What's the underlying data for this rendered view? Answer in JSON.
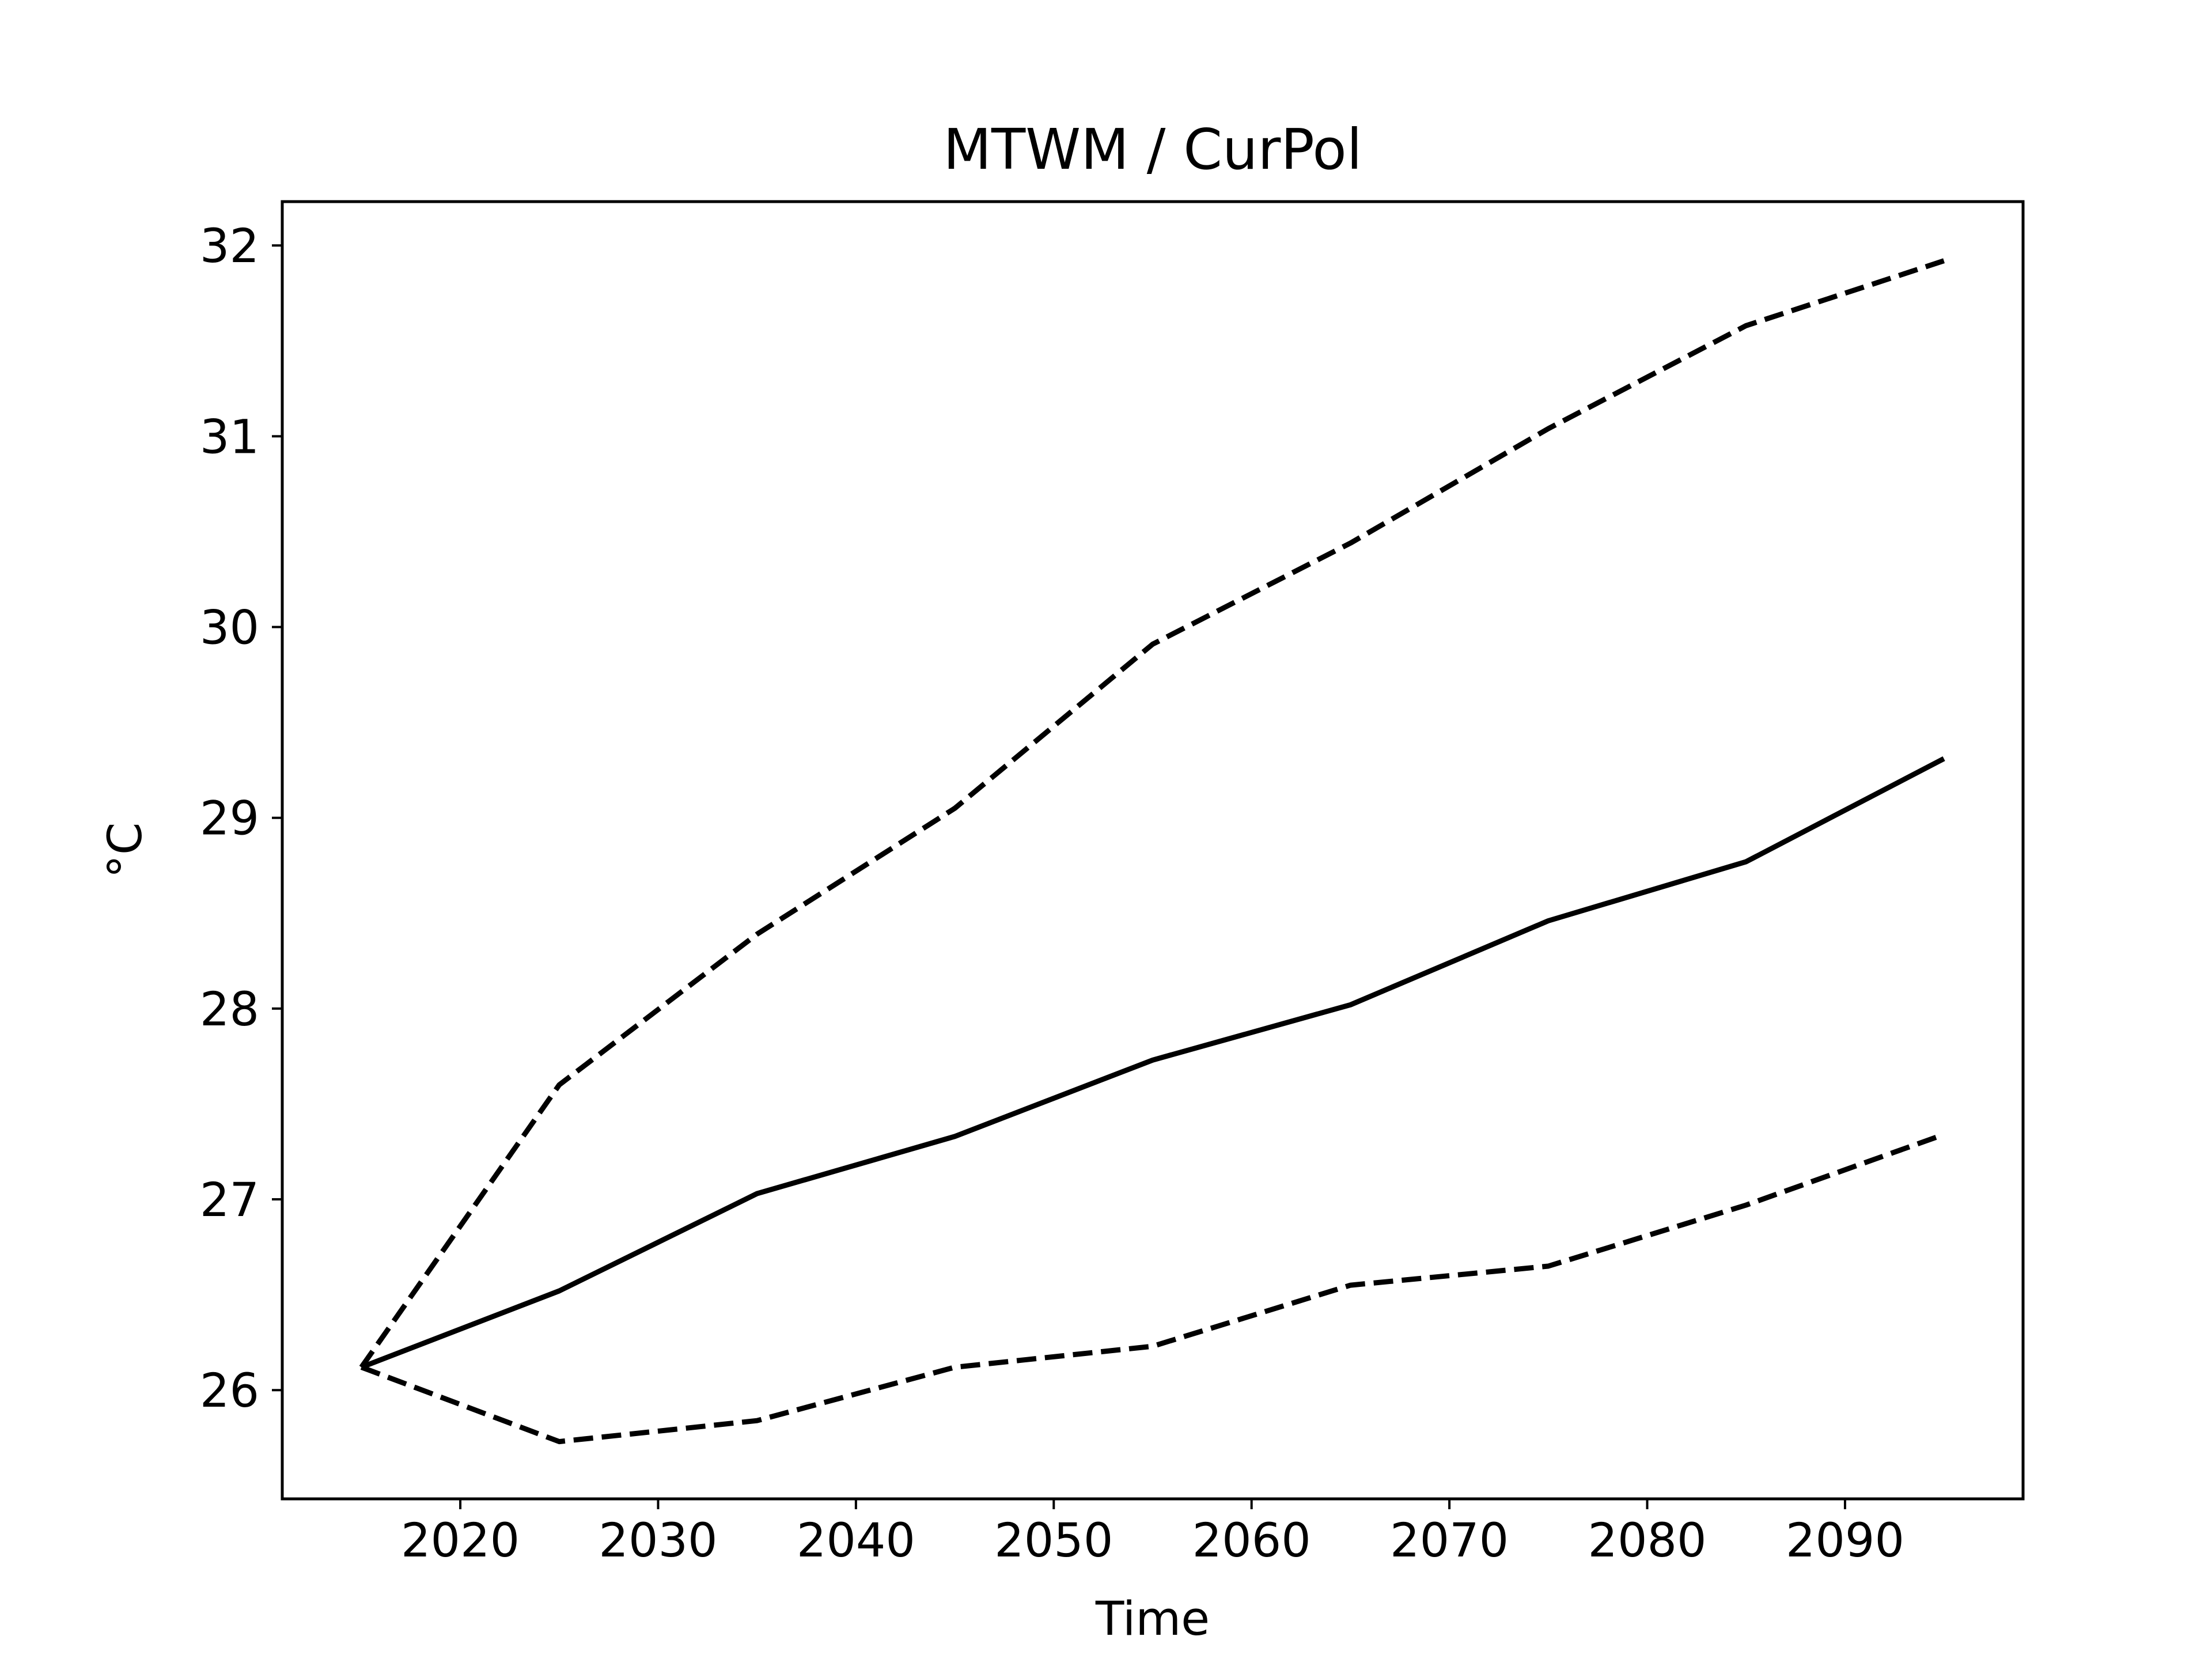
{
  "chart_data": {
    "type": "line",
    "title": "MTWM / CurPol",
    "xlabel": "Time",
    "ylabel": "°C",
    "x": [
      2015,
      2025,
      2035,
      2045,
      2055,
      2065,
      2075,
      2085,
      2095
    ],
    "xlim": [
      2011,
      2099
    ],
    "ylim": [
      25.43,
      32.23
    ],
    "xticks": [
      2020,
      2030,
      2040,
      2050,
      2060,
      2070,
      2080,
      2090
    ],
    "yticks": [
      26,
      27,
      28,
      29,
      30,
      31,
      32
    ],
    "grid": false,
    "series": [
      {
        "style": "solid",
        "color": "#000000",
        "values": [
          26.12,
          26.52,
          27.03,
          27.33,
          27.73,
          28.02,
          28.46,
          28.77,
          29.31
        ]
      },
      {
        "style": "dashed",
        "color": "#000000",
        "values": [
          26.12,
          27.6,
          28.39,
          29.05,
          29.91,
          30.44,
          31.04,
          31.58,
          31.92
        ]
      },
      {
        "style": "dashed",
        "color": "#000000",
        "values": [
          26.12,
          25.73,
          25.84,
          26.12,
          26.23,
          26.55,
          26.65,
          26.97,
          27.34
        ]
      }
    ]
  }
}
